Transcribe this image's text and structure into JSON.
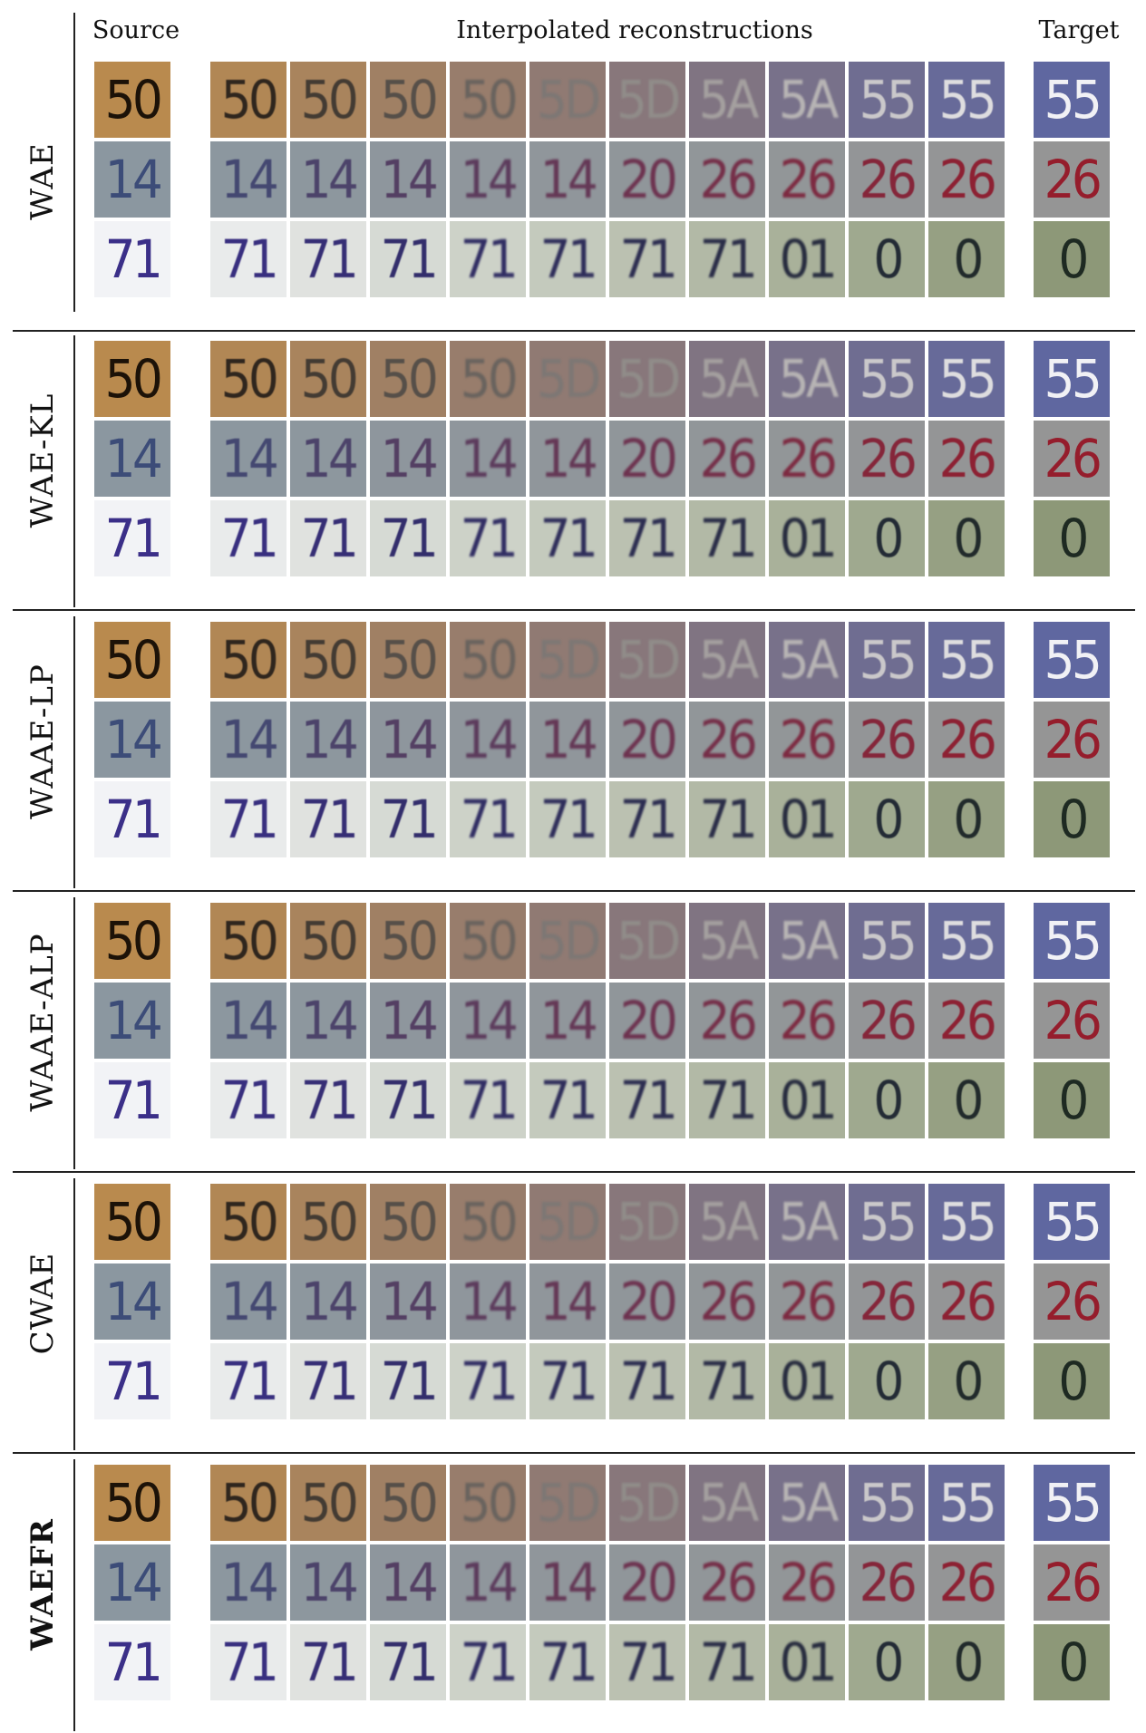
{
  "headers": {
    "source": "Source",
    "interpolated": "Interpolated reconstructions",
    "target": "Target"
  },
  "methods": [
    {
      "name": "WAE",
      "bold": false
    },
    {
      "name": "WAE-KL",
      "bold": false
    },
    {
      "name": "WAAE-LP",
      "bold": false
    },
    {
      "name": "WAAE-ALP",
      "bold": false
    },
    {
      "name": "CWAE",
      "bold": false
    },
    {
      "name": "WAEFR",
      "bold": true
    }
  ],
  "examples": [
    {
      "source_text": "50",
      "target_text": "55",
      "source_bg": "#b98a4e",
      "target_bg": "#5f67a0",
      "source_fg": "#1c1208",
      "target_fg": "#f1f1f5",
      "interp_text": [
        "50",
        "50",
        "50",
        "50",
        "5D",
        "5D",
        "5A",
        "5A",
        "55",
        "55"
      ]
    },
    {
      "source_text": "14",
      "target_text": "26",
      "source_bg": "#8b97a0",
      "target_bg": "#959595",
      "source_fg": "#3c4c78",
      "target_fg": "#951d2c",
      "interp_text": [
        "14",
        "14",
        "14",
        "14",
        "14",
        "20",
        "26",
        "26",
        "26",
        "26"
      ]
    },
    {
      "source_text": "71",
      "target_text": "0",
      "source_bg": "#f2f3f6",
      "target_bg": "#8d9878",
      "source_fg": "#3b2f88",
      "target_fg": "#1e2a22",
      "interp_text": [
        "71",
        "71",
        "71",
        "71",
        "71",
        "71",
        "71",
        "01",
        "0",
        "0"
      ]
    }
  ]
}
